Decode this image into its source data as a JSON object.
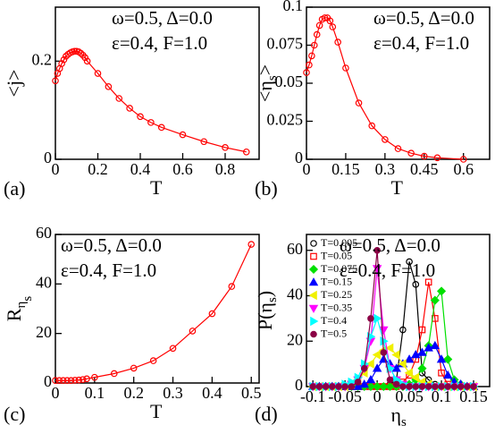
{
  "chart_data": [
    {
      "type": "line",
      "panel_label": "(a)",
      "annotations": [
        "ω=0.5, Δ=0.0",
        "ε=0.4, F=1.0"
      ],
      "x_label": [
        {
          "text": "T",
          "sub": 0
        }
      ],
      "y_label": [
        {
          "text": "<j>",
          "sub": 0
        }
      ],
      "x": [
        0,
        0.01,
        0.02,
        0.03,
        0.04,
        0.05,
        0.06,
        0.07,
        0.08,
        0.09,
        0.1,
        0.11,
        0.12,
        0.13,
        0.14,
        0.15,
        0.2,
        0.25,
        0.3,
        0.35,
        0.4,
        0.45,
        0.5,
        0.6,
        0.7,
        0.8,
        0.9
      ],
      "series": [
        {
          "color": "#ff0000",
          "marker": "circle",
          "values": [
            0.16,
            0.175,
            0.185,
            0.195,
            0.203,
            0.21,
            0.214,
            0.217,
            0.219,
            0.22,
            0.22,
            0.219,
            0.216,
            0.212,
            0.207,
            0.2,
            0.175,
            0.148,
            0.124,
            0.104,
            0.087,
            0.075,
            0.065,
            0.05,
            0.036,
            0.024,
            0.015
          ]
        }
      ],
      "xlim": [
        0,
        0.96
      ],
      "xticks": [
        0,
        0.2,
        0.4,
        0.6,
        0.8
      ],
      "ylim": [
        0,
        0.31
      ],
      "yticks": [
        0,
        0.2
      ]
    },
    {
      "type": "line",
      "panel_label": "(b)",
      "annotations": [
        "ω=0.5, Δ=0.0",
        "ε=0.4, F=1.0"
      ],
      "x_label": [
        {
          "text": "T",
          "sub": 0
        }
      ],
      "y_label": [
        {
          "text": "<η",
          "sub": 0
        },
        {
          "text": "s",
          "sub": 1
        },
        {
          "text": ">",
          "sub": 0
        }
      ],
      "x": [
        0,
        0.01,
        0.02,
        0.03,
        0.04,
        0.05,
        0.06,
        0.07,
        0.08,
        0.09,
        0.1,
        0.12,
        0.15,
        0.2,
        0.25,
        0.3,
        0.35,
        0.4,
        0.45,
        0.5,
        0.6
      ],
      "series": [
        {
          "color": "#ff0000",
          "marker": "circle",
          "values": [
            0.057,
            0.062,
            0.068,
            0.075,
            0.082,
            0.088,
            0.092,
            0.093,
            0.093,
            0.091,
            0.087,
            0.077,
            0.06,
            0.037,
            0.022,
            0.013,
            0.007,
            0.004,
            0.002,
            0.001,
            0
          ]
        }
      ],
      "xlim": [
        0,
        0.7
      ],
      "xticks": [
        0,
        0.15,
        0.3,
        0.45,
        0.6
      ],
      "ylim": [
        0,
        0.1
      ],
      "yticks": [
        0,
        0.025,
        0.05,
        0.075,
        0.1
      ]
    },
    {
      "type": "line",
      "panel_label": "(c)",
      "annotations": [
        "ω=0.5, Δ=0.0",
        "ε=0.4, F=1.0"
      ],
      "x_label": [
        {
          "text": "T",
          "sub": 0
        }
      ],
      "y_label": [
        {
          "text": "R",
          "sub": 0
        },
        {
          "text": "η",
          "sub": 1
        },
        {
          "text": "s",
          "sub": 2
        }
      ],
      "x": [
        0,
        0.01,
        0.02,
        0.03,
        0.04,
        0.05,
        0.06,
        0.07,
        0.08,
        0.1,
        0.15,
        0.2,
        0.25,
        0.3,
        0.35,
        0.4,
        0.45,
        0.5
      ],
      "series": [
        {
          "color": "#ff0000",
          "marker": "circle",
          "values": [
            1,
            1,
            1,
            1,
            1,
            1.1,
            1.2,
            1.4,
            1.7,
            2.3,
            3.8,
            6,
            9,
            14,
            21,
            28,
            39,
            56
          ]
        }
      ],
      "xlim": [
        0,
        0.52
      ],
      "xticks": [
        0,
        0.1,
        0.2,
        0.3,
        0.4,
        0.5
      ],
      "ylim": [
        0,
        60
      ],
      "yticks": [
        0,
        20,
        40,
        60
      ]
    },
    {
      "type": "line",
      "panel_label": "(d)",
      "annotations": [
        "ω=0.5, Δ=0.0",
        "ε=0.4, F=1.0"
      ],
      "x_label": [
        {
          "text": "η",
          "sub": 0
        },
        {
          "text": "s",
          "sub": 1
        }
      ],
      "y_label": [
        {
          "text": "P(η",
          "sub": 0
        },
        {
          "text": "s",
          "sub": 1
        },
        {
          "text": ")",
          "sub": 0
        }
      ],
      "x": [
        -0.1,
        -0.09,
        -0.08,
        -0.07,
        -0.06,
        -0.05,
        -0.04,
        -0.03,
        -0.02,
        -0.01,
        0,
        0.01,
        0.02,
        0.03,
        0.04,
        0.05,
        0.06,
        0.07,
        0.08,
        0.09,
        0.1,
        0.11,
        0.12,
        0.13,
        0.14,
        0.15
      ],
      "series": [
        {
          "name": "T=0.005",
          "color": "#000000",
          "marker": "circle",
          "values": [
            0,
            0,
            0,
            0,
            0,
            0,
            0,
            0,
            0,
            0,
            0,
            0,
            1,
            3,
            25,
            55,
            45,
            6,
            3,
            1,
            0,
            0,
            0,
            0,
            0,
            0
          ]
        },
        {
          "name": "T=0.05",
          "color": "#ff0000",
          "marker": "square",
          "values": [
            0,
            0,
            0,
            0,
            0,
            0,
            0,
            0,
            0,
            0,
            0,
            0,
            0,
            0,
            2,
            5,
            12,
            25,
            46,
            30,
            6,
            1,
            0,
            0,
            0,
            0
          ]
        },
        {
          "name": "T=0.075",
          "color": "#00e000",
          "marker": "diamond",
          "values": [
            0,
            0,
            0,
            0,
            0,
            0,
            0,
            0,
            0,
            0,
            0,
            0,
            0,
            0,
            0,
            1,
            3,
            8,
            18,
            38,
            42,
            12,
            3,
            1,
            0,
            0
          ]
        },
        {
          "name": "T=0.15",
          "color": "#0000ff",
          "marker": "triangle-up",
          "values": [
            0,
            0,
            0,
            0,
            0,
            0,
            0,
            0,
            1,
            3,
            8,
            12,
            10,
            8,
            10,
            12,
            14,
            15,
            17,
            18,
            12,
            5,
            2,
            1,
            0,
            0
          ]
        },
        {
          "name": "T=0.25",
          "color": "#f0f000",
          "marker": "triangle-left",
          "values": [
            0,
            0,
            0,
            0,
            0,
            0,
            1,
            3,
            6,
            10,
            14,
            16,
            17,
            14,
            10,
            6,
            4,
            2,
            1,
            0,
            0,
            0,
            0,
            0,
            0,
            0
          ]
        },
        {
          "name": "T=0.35",
          "color": "#ff00ff",
          "marker": "triangle-down",
          "values": [
            0,
            0,
            0,
            0,
            0,
            0,
            1,
            3,
            8,
            20,
            52,
            25,
            8,
            3,
            1,
            0,
            0,
            0,
            0,
            0,
            0,
            0,
            0,
            0,
            0,
            0
          ]
        },
        {
          "name": "T=0.4",
          "color": "#00ffff",
          "marker": "triangle-right",
          "values": [
            0,
            0,
            0,
            0,
            0,
            1,
            2,
            4,
            10,
            22,
            30,
            20,
            8,
            3,
            1,
            0,
            0,
            0,
            0,
            0,
            0,
            0,
            0,
            0,
            0,
            0
          ]
        },
        {
          "name": "T=0.5",
          "color": "#8b0045",
          "marker": "dot",
          "values": [
            0,
            0,
            0,
            0,
            0,
            0,
            0,
            2,
            8,
            30,
            60,
            15,
            3,
            1,
            0,
            0,
            0,
            0,
            0,
            0,
            0,
            0,
            0,
            0,
            0,
            0
          ]
        }
      ],
      "legend": "upper left",
      "xlim": [
        -0.11,
        0.175
      ],
      "xticks": [
        -0.1,
        -0.05,
        0,
        0.05,
        0.1,
        0.15
      ],
      "ylim": [
        0,
        67
      ],
      "yticks": [
        0,
        20,
        40,
        60
      ]
    }
  ]
}
